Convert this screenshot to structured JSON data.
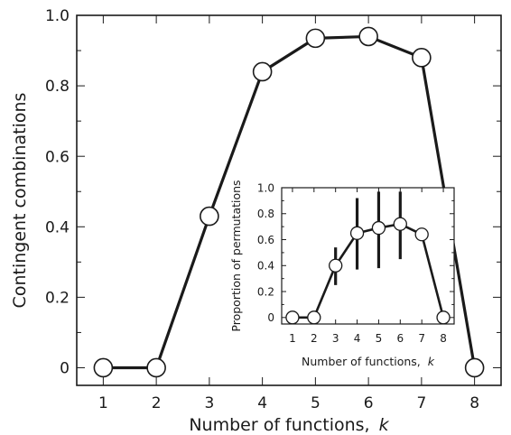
{
  "chart_data": [
    {
      "type": "line",
      "xlabel": "Number of functions, ",
      "xlabel_var": "k",
      "ylabel": "Contingent combinations",
      "xlim": [
        0.5,
        8.5
      ],
      "ylim": [
        -0.05,
        1.0
      ],
      "xticks": [
        "1",
        "2",
        "3",
        "4",
        "5",
        "6",
        "7",
        "8"
      ],
      "yticks": [
        {
          "v": 0,
          "label": "0"
        },
        {
          "v": 0.2,
          "label": "0.2"
        },
        {
          "v": 0.4,
          "label": "0.4"
        },
        {
          "v": 0.6,
          "label": "0.6"
        },
        {
          "v": 0.8,
          "label": "0.8"
        },
        {
          "v": 1.0,
          "label": "1.0"
        }
      ],
      "x": [
        1,
        2,
        3,
        4,
        5,
        6,
        7,
        8
      ],
      "values": [
        0,
        0,
        0.43,
        0.84,
        0.935,
        0.94,
        0.88,
        0
      ],
      "grid": false,
      "markers": "open-circle"
    },
    {
      "type": "line",
      "inset": true,
      "xlabel": "Number of functions, ",
      "xlabel_var": "k",
      "ylabel": "Proportion of permutations",
      "xlim": [
        0.5,
        8.5
      ],
      "ylim": [
        -0.05,
        1.0
      ],
      "xticks": [
        "1",
        "2",
        "3",
        "4",
        "5",
        "6",
        "7",
        "8"
      ],
      "yticks": [
        {
          "v": 0,
          "label": "0"
        },
        {
          "v": 0.2,
          "label": "0.2"
        },
        {
          "v": 0.4,
          "label": "0.4"
        },
        {
          "v": 0.6,
          "label": "0.6"
        },
        {
          "v": 0.8,
          "label": "0.8"
        },
        {
          "v": 1.0,
          "label": "1.0"
        }
      ],
      "x": [
        1,
        2,
        3,
        4,
        5,
        6,
        7,
        8
      ],
      "values": [
        0,
        0,
        0.4,
        0.65,
        0.69,
        0.72,
        0.64,
        0
      ],
      "error_bars": [
        null,
        null,
        [
          0.25,
          0.54
        ],
        [
          0.37,
          0.92
        ],
        [
          0.38,
          0.97
        ],
        [
          0.45,
          0.97
        ],
        [
          0.59,
          0.69
        ],
        null
      ],
      "grid": false,
      "markers": "open-circle"
    }
  ]
}
